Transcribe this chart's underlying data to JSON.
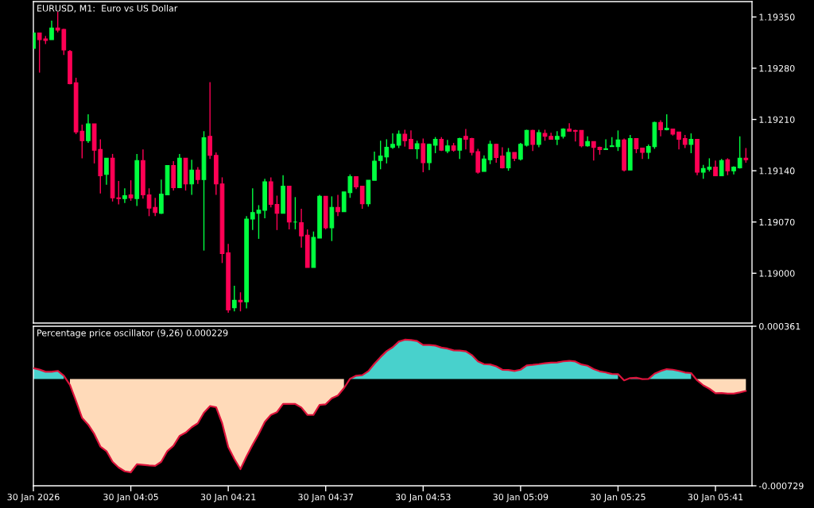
{
  "chart_data": [
    {
      "type": "candlestick",
      "title": "EURUSD, M1:  Euro vs US Dollar",
      "x": [
        "2026-01-30T03:49",
        "2026-01-30T03:50",
        "2026-01-30T03:51",
        "2026-01-30T03:52",
        "2026-01-30T03:53",
        "2026-01-30T03:54",
        "2026-01-30T03:55",
        "2026-01-30T03:56",
        "2026-01-30T03:57",
        "2026-01-30T03:58",
        "2026-01-30T03:59",
        "2026-01-30T04:00",
        "2026-01-30T04:01",
        "2026-01-30T04:02",
        "2026-01-30T04:03",
        "2026-01-30T04:04",
        "2026-01-30T04:05",
        "2026-01-30T04:06",
        "2026-01-30T04:07",
        "2026-01-30T04:08",
        "2026-01-30T04:09",
        "2026-01-30T04:10",
        "2026-01-30T04:11",
        "2026-01-30T04:12",
        "2026-01-30T04:13",
        "2026-01-30T04:14",
        "2026-01-30T04:15",
        "2026-01-30T04:16",
        "2026-01-30T04:17",
        "2026-01-30T04:18",
        "2026-01-30T04:19",
        "2026-01-30T04:20",
        "2026-01-30T04:21",
        "2026-01-30T04:22",
        "2026-01-30T04:23",
        "2026-01-30T04:24",
        "2026-01-30T04:25",
        "2026-01-30T04:26",
        "2026-01-30T04:27",
        "2026-01-30T04:28",
        "2026-01-30T04:29",
        "2026-01-30T04:30",
        "2026-01-30T04:31",
        "2026-01-30T04:32",
        "2026-01-30T04:33",
        "2026-01-30T04:34",
        "2026-01-30T04:35",
        "2026-01-30T04:36",
        "2026-01-30T04:37",
        "2026-01-30T04:38",
        "2026-01-30T04:39",
        "2026-01-30T04:40",
        "2026-01-30T04:41",
        "2026-01-30T04:42",
        "2026-01-30T04:43",
        "2026-01-30T04:44",
        "2026-01-30T04:45",
        "2026-01-30T04:46",
        "2026-01-30T04:47",
        "2026-01-30T04:48",
        "2026-01-30T04:49",
        "2026-01-30T04:50",
        "2026-01-30T04:51",
        "2026-01-30T04:52",
        "2026-01-30T04:53",
        "2026-01-30T04:54",
        "2026-01-30T04:55",
        "2026-01-30T04:56",
        "2026-01-30T04:57",
        "2026-01-30T04:58",
        "2026-01-30T04:59",
        "2026-01-30T05:00",
        "2026-01-30T05:01",
        "2026-01-30T05:02",
        "2026-01-30T05:03",
        "2026-01-30T05:04",
        "2026-01-30T05:05",
        "2026-01-30T05:06",
        "2026-01-30T05:07",
        "2026-01-30T05:08",
        "2026-01-30T05:09",
        "2026-01-30T05:10",
        "2026-01-30T05:11",
        "2026-01-30T05:12",
        "2026-01-30T05:13",
        "2026-01-30T05:14",
        "2026-01-30T05:15",
        "2026-01-30T05:16",
        "2026-01-30T05:17",
        "2026-01-30T05:18",
        "2026-01-30T05:19",
        "2026-01-30T05:20",
        "2026-01-30T05:21",
        "2026-01-30T05:22",
        "2026-01-30T05:23",
        "2026-01-30T05:24",
        "2026-01-30T05:25",
        "2026-01-30T05:26",
        "2026-01-30T05:27",
        "2026-01-30T05:28",
        "2026-01-30T05:29",
        "2026-01-30T05:30",
        "2026-01-30T05:31",
        "2026-01-30T05:32",
        "2026-01-30T05:33",
        "2026-01-30T05:34",
        "2026-01-30T05:35",
        "2026-01-30T05:36",
        "2026-01-30T05:37",
        "2026-01-30T05:38",
        "2026-01-30T05:39",
        "2026-01-30T05:40",
        "2026-01-30T05:41",
        "2026-01-30T05:42",
        "2026-01-30T05:43",
        "2026-01-30T05:44",
        "2026-01-30T05:45",
        "2026-01-30T05:46"
      ],
      "ohlc": [
        [
          1.19307,
          1.19328,
          1.19307,
          1.19328
        ],
        [
          1.19328,
          1.19328,
          1.19274,
          1.19319
        ],
        [
          1.1932,
          1.19324,
          1.19313,
          1.19318
        ],
        [
          1.19319,
          1.19345,
          1.19319,
          1.19335
        ],
        [
          1.19335,
          1.19357,
          1.19329,
          1.19332
        ],
        [
          1.19333,
          1.19334,
          1.19298,
          1.19305
        ],
        [
          1.19303,
          1.19305,
          1.19258,
          1.19259
        ],
        [
          1.1926,
          1.19267,
          1.1919,
          1.19193
        ],
        [
          1.19194,
          1.19203,
          1.19157,
          1.19181
        ],
        [
          1.19181,
          1.19217,
          1.19178,
          1.19204
        ],
        [
          1.19204,
          1.19204,
          1.1915,
          1.19168
        ],
        [
          1.19169,
          1.19183,
          1.19109,
          1.19133
        ],
        [
          1.19135,
          1.19157,
          1.19121,
          1.19157
        ],
        [
          1.19157,
          1.19163,
          1.19098,
          1.19103
        ],
        [
          1.19103,
          1.19126,
          1.19094,
          1.19102
        ],
        [
          1.19102,
          1.19116,
          1.19096,
          1.19106
        ],
        [
          1.19107,
          1.19127,
          1.19099,
          1.19103
        ],
        [
          1.19102,
          1.19163,
          1.19092,
          1.19154
        ],
        [
          1.19154,
          1.19169,
          1.19102,
          1.19107
        ],
        [
          1.19107,
          1.19116,
          1.19078,
          1.19089
        ],
        [
          1.1909,
          1.19103,
          1.19078,
          1.19083
        ],
        [
          1.19082,
          1.19128,
          1.19081,
          1.19108
        ],
        [
          1.19107,
          1.19147,
          1.19107,
          1.19147
        ],
        [
          1.19147,
          1.19153,
          1.19113,
          1.19117
        ],
        [
          1.19117,
          1.19163,
          1.19117,
          1.19157
        ],
        [
          1.19157,
          1.19157,
          1.19113,
          1.19122
        ],
        [
          1.19122,
          1.19155,
          1.19107,
          1.19141
        ],
        [
          1.19141,
          1.19145,
          1.19122,
          1.19128
        ],
        [
          1.19128,
          1.19194,
          1.19031,
          1.19185
        ],
        [
          1.19187,
          1.19261,
          1.19156,
          1.19161
        ],
        [
          1.19161,
          1.19165,
          1.19107,
          1.19122
        ],
        [
          1.19122,
          1.19131,
          1.19014,
          1.19027
        ],
        [
          1.19028,
          1.1904,
          1.18946,
          1.1895
        ],
        [
          1.18953,
          1.18983,
          1.18948,
          1.18963
        ],
        [
          1.18963,
          1.18974,
          1.18948,
          1.18961
        ],
        [
          1.18961,
          1.19078,
          1.18952,
          1.19074
        ],
        [
          1.19074,
          1.19116,
          1.19059,
          1.19083
        ],
        [
          1.19082,
          1.19093,
          1.19047,
          1.19086
        ],
        [
          1.19086,
          1.19129,
          1.19075,
          1.19125
        ],
        [
          1.19125,
          1.19131,
          1.1909,
          1.19094
        ],
        [
          1.19094,
          1.19106,
          1.19059,
          1.19082
        ],
        [
          1.19082,
          1.19134,
          1.19082,
          1.19119
        ],
        [
          1.19119,
          1.19119,
          1.1906,
          1.1907
        ],
        [
          1.1907,
          1.19104,
          1.1906,
          1.1907
        ],
        [
          1.19069,
          1.19088,
          1.19035,
          1.19051
        ],
        [
          1.19052,
          1.1906,
          1.19008,
          1.19008
        ],
        [
          1.19008,
          1.19057,
          1.19008,
          1.19049
        ],
        [
          1.19048,
          1.19107,
          1.19048,
          1.19105
        ],
        [
          1.19105,
          1.19105,
          1.1906,
          1.19062
        ],
        [
          1.19062,
          1.19105,
          1.19044,
          1.1909
        ],
        [
          1.1909,
          1.19107,
          1.19078,
          1.19084
        ],
        [
          1.19084,
          1.19111,
          1.19084,
          1.19111
        ],
        [
          1.1911,
          1.19135,
          1.19103,
          1.19132
        ],
        [
          1.19132,
          1.19132,
          1.19115,
          1.19118
        ],
        [
          1.19119,
          1.19119,
          1.19088,
          1.19095
        ],
        [
          1.19095,
          1.19127,
          1.19091,
          1.19127
        ],
        [
          1.19127,
          1.19166,
          1.19127,
          1.19153
        ],
        [
          1.19154,
          1.19181,
          1.19142,
          1.1916
        ],
        [
          1.19159,
          1.19183,
          1.1915,
          1.19172
        ],
        [
          1.19172,
          1.19191,
          1.1917,
          1.19176
        ],
        [
          1.19175,
          1.19195,
          1.19171,
          1.1919
        ],
        [
          1.1919,
          1.19196,
          1.19173,
          1.19181
        ],
        [
          1.19183,
          1.19195,
          1.1917,
          1.1917
        ],
        [
          1.1917,
          1.19181,
          1.19156,
          1.19177
        ],
        [
          1.19177,
          1.19184,
          1.19138,
          1.19151
        ],
        [
          1.19151,
          1.19177,
          1.19141,
          1.19176
        ],
        [
          1.19175,
          1.19186,
          1.19164,
          1.19183
        ],
        [
          1.19183,
          1.19186,
          1.19167,
          1.19168
        ],
        [
          1.19167,
          1.19182,
          1.19164,
          1.19174
        ],
        [
          1.19174,
          1.19178,
          1.19166,
          1.19168
        ],
        [
          1.19168,
          1.19185,
          1.19156,
          1.19184
        ],
        [
          1.19187,
          1.19197,
          1.19169,
          1.19183
        ],
        [
          1.19184,
          1.19185,
          1.19161,
          1.19165
        ],
        [
          1.19166,
          1.1917,
          1.19136,
          1.19138
        ],
        [
          1.19139,
          1.19161,
          1.19139,
          1.19156
        ],
        [
          1.19155,
          1.19181,
          1.19149,
          1.19176
        ],
        [
          1.19176,
          1.19177,
          1.19151,
          1.19158
        ],
        [
          1.1916,
          1.19172,
          1.19143,
          1.19144
        ],
        [
          1.19144,
          1.19171,
          1.1914,
          1.19165
        ],
        [
          1.19165,
          1.19165,
          1.19153,
          1.19157
        ],
        [
          1.19156,
          1.19178,
          1.19154,
          1.19176
        ],
        [
          1.19175,
          1.19196,
          1.19173,
          1.19195
        ],
        [
          1.19195,
          1.19196,
          1.19167,
          1.19176
        ],
        [
          1.19176,
          1.19196,
          1.19172,
          1.19192
        ],
        [
          1.19191,
          1.19196,
          1.19181,
          1.19187
        ],
        [
          1.19187,
          1.19192,
          1.19183,
          1.19183
        ],
        [
          1.19183,
          1.19194,
          1.19175,
          1.19187
        ],
        [
          1.19187,
          1.19198,
          1.19184,
          1.19197
        ],
        [
          1.19197,
          1.19205,
          1.19194,
          1.19194
        ],
        [
          1.19195,
          1.19196,
          1.1918,
          1.19194
        ],
        [
          1.19195,
          1.19195,
          1.19172,
          1.19174
        ],
        [
          1.19174,
          1.19187,
          1.19173,
          1.1918
        ],
        [
          1.1918,
          1.1918,
          1.19154,
          1.19172
        ],
        [
          1.19172,
          1.19173,
          1.19162,
          1.19169
        ],
        [
          1.19169,
          1.19183,
          1.19169,
          1.1917
        ],
        [
          1.19173,
          1.19186,
          1.19173,
          1.19174
        ],
        [
          1.19173,
          1.19195,
          1.19167,
          1.19182
        ],
        [
          1.19182,
          1.19184,
          1.19139,
          1.19141
        ],
        [
          1.19141,
          1.19189,
          1.19141,
          1.19184
        ],
        [
          1.19184,
          1.19184,
          1.19164,
          1.1917
        ],
        [
          1.19171,
          1.19171,
          1.19156,
          1.19165
        ],
        [
          1.19165,
          1.19176,
          1.19156,
          1.19173
        ],
        [
          1.19173,
          1.19207,
          1.1917,
          1.19206
        ],
        [
          1.19206,
          1.19209,
          1.19187,
          1.19196
        ],
        [
          1.19196,
          1.19217,
          1.19195,
          1.19198
        ],
        [
          1.19197,
          1.19197,
          1.19188,
          1.1919
        ],
        [
          1.19193,
          1.19193,
          1.19169,
          1.19183
        ],
        [
          1.19184,
          1.19189,
          1.19171,
          1.19176
        ],
        [
          1.19176,
          1.19191,
          1.19164,
          1.19183
        ],
        [
          1.19183,
          1.19183,
          1.19134,
          1.19138
        ],
        [
          1.19138,
          1.19148,
          1.19129,
          1.19143
        ],
        [
          1.19142,
          1.19157,
          1.19139,
          1.19145
        ],
        [
          1.19145,
          1.19154,
          1.19133,
          1.19133
        ],
        [
          1.19133,
          1.19156,
          1.19133,
          1.19154
        ],
        [
          1.19155,
          1.19157,
          1.19134,
          1.1914
        ],
        [
          1.1914,
          1.19146,
          1.19135,
          1.19145
        ],
        [
          1.19144,
          1.19187,
          1.19143,
          1.19157
        ],
        [
          1.19157,
          1.19171,
          1.19151,
          1.19155
        ]
      ],
      "colors": [
        "#00ff40",
        "#ff0055",
        "#ff0055",
        "#00ff40",
        "#ff0055",
        "#ff0055",
        "#ff0055",
        "#ff0055",
        "#ff0055",
        "#00ff40",
        "#ff0055",
        "#ff0055",
        "#00ff40",
        "#ff0055",
        "#ff0055",
        "#00ff40",
        "#ff0055",
        "#00ff40",
        "#ff0055",
        "#ff0055",
        "#ff0055",
        "#00ff40",
        "#00ff40",
        "#ff0055",
        "#00ff40",
        "#ff0055",
        "#00ff40",
        "#ff0055",
        "#00ff40",
        "#ff0055",
        "#ff0055",
        "#ff0055",
        "#ff0055",
        "#00ff40",
        "#ff0055",
        "#00ff40",
        "#00ff40",
        "#00ff40",
        "#00ff40",
        "#ff0055",
        "#ff0055",
        "#00ff40",
        "#ff0055",
        "#00ff40",
        "#ff0055",
        "#ff0055",
        "#00ff40",
        "#00ff40",
        "#ff0055",
        "#00ff40",
        "#ff0055",
        "#00ff40",
        "#00ff40",
        "#ff0055",
        "#ff0055",
        "#00ff40",
        "#00ff40",
        "#00ff40",
        "#00ff40",
        "#00ff40",
        "#00ff40",
        "#ff0055",
        "#ff0055",
        "#00ff40",
        "#ff0055",
        "#00ff40",
        "#00ff40",
        "#ff0055",
        "#00ff40",
        "#ff0055",
        "#00ff40",
        "#ff0055",
        "#ff0055",
        "#ff0055",
        "#00ff40",
        "#00ff40",
        "#ff0055",
        "#ff0055",
        "#00ff40",
        "#ff0055",
        "#00ff40",
        "#00ff40",
        "#ff0055",
        "#00ff40",
        "#ff0055",
        "#ff0055",
        "#00ff40",
        "#00ff40",
        "#ff0055",
        "#ff0055",
        "#ff0055",
        "#00ff40",
        "#ff0055",
        "#ff0055",
        "#00ff40",
        "#00ff40",
        "#00ff40",
        "#ff0055",
        "#00ff40",
        "#ff0055",
        "#ff0055",
        "#00ff40",
        "#00ff40",
        "#ff0055",
        "#00ff40",
        "#ff0055",
        "#ff0055",
        "#ff0055",
        "#00ff40",
        "#ff0055",
        "#00ff40",
        "#00ff40",
        "#ff0055",
        "#00ff40",
        "#ff0055",
        "#00ff40",
        "#00ff40",
        "#ff0055"
      ],
      "xlim": [
        "2026-01-30T03:49",
        "2026-01-30T05:47"
      ],
      "ylim": [
        1.18932,
        1.19371
      ],
      "yticks": [
        {
          "value": 1.1935,
          "label": "1.19350"
        },
        {
          "value": 1.1928,
          "label": "1.19280"
        },
        {
          "value": 1.1921,
          "label": "1.19210"
        },
        {
          "value": 1.1914,
          "label": "1.19140"
        },
        {
          "value": 1.1907,
          "label": "1.19070"
        },
        {
          "value": 1.19,
          "label": "1.19000"
        }
      ],
      "tick_labels": "y"
    },
    {
      "type": "area",
      "title": "Percentage price oscillator (9,26) 0.000229",
      "x": [
        "2026-01-30T03:49",
        "2026-01-30T03:50",
        "2026-01-30T03:51",
        "2026-01-30T03:52",
        "2026-01-30T03:53",
        "2026-01-30T03:54",
        "2026-01-30T03:55",
        "2026-01-30T03:56",
        "2026-01-30T03:57",
        "2026-01-30T03:58",
        "2026-01-30T03:59",
        "2026-01-30T04:00",
        "2026-01-30T04:01",
        "2026-01-30T04:02",
        "2026-01-30T04:03",
        "2026-01-30T04:04",
        "2026-01-30T04:05",
        "2026-01-30T04:06",
        "2026-01-30T04:07",
        "2026-01-30T04:08",
        "2026-01-30T04:09",
        "2026-01-30T04:10",
        "2026-01-30T04:11",
        "2026-01-30T04:12",
        "2026-01-30T04:13",
        "2026-01-30T04:14",
        "2026-01-30T04:15",
        "2026-01-30T04:16",
        "2026-01-30T04:17",
        "2026-01-30T04:18",
        "2026-01-30T04:19",
        "2026-01-30T04:20",
        "2026-01-30T04:21",
        "2026-01-30T04:22",
        "2026-01-30T04:23",
        "2026-01-30T04:24",
        "2026-01-30T04:25",
        "2026-01-30T04:26",
        "2026-01-30T04:27",
        "2026-01-30T04:28",
        "2026-01-30T04:29",
        "2026-01-30T04:30",
        "2026-01-30T04:31",
        "2026-01-30T04:32",
        "2026-01-30T04:33",
        "2026-01-30T04:34",
        "2026-01-30T04:35",
        "2026-01-30T04:36",
        "2026-01-30T04:37",
        "2026-01-30T04:38",
        "2026-01-30T04:39",
        "2026-01-30T04:40",
        "2026-01-30T04:41",
        "2026-01-30T04:42",
        "2026-01-30T04:43",
        "2026-01-30T04:44",
        "2026-01-30T04:45",
        "2026-01-30T04:46",
        "2026-01-30T04:47",
        "2026-01-30T04:48",
        "2026-01-30T04:49",
        "2026-01-30T04:50",
        "2026-01-30T04:51",
        "2026-01-30T04:52",
        "2026-01-30T04:53",
        "2026-01-30T04:54",
        "2026-01-30T04:55",
        "2026-01-30T04:56",
        "2026-01-30T04:57",
        "2026-01-30T04:58",
        "2026-01-30T04:59",
        "2026-01-30T05:00",
        "2026-01-30T05:01",
        "2026-01-30T05:02",
        "2026-01-30T05:03",
        "2026-01-30T05:04",
        "2026-01-30T05:05",
        "2026-01-30T05:06",
        "2026-01-30T05:07",
        "2026-01-30T05:08",
        "2026-01-30T05:09",
        "2026-01-30T05:10",
        "2026-01-30T05:11",
        "2026-01-30T05:12",
        "2026-01-30T05:13",
        "2026-01-30T05:14",
        "2026-01-30T05:15",
        "2026-01-30T05:16",
        "2026-01-30T05:17",
        "2026-01-30T05:18",
        "2026-01-30T05:19",
        "2026-01-30T05:20",
        "2026-01-30T05:21",
        "2026-01-30T05:22",
        "2026-01-30T05:23",
        "2026-01-30T05:24",
        "2026-01-30T05:25",
        "2026-01-30T05:26",
        "2026-01-30T05:27",
        "2026-01-30T05:28",
        "2026-01-30T05:29",
        "2026-01-30T05:30",
        "2026-01-30T05:31",
        "2026-01-30T05:32",
        "2026-01-30T05:33",
        "2026-01-30T05:34",
        "2026-01-30T05:35",
        "2026-01-30T05:36",
        "2026-01-30T05:37",
        "2026-01-30T05:38",
        "2026-01-30T05:39",
        "2026-01-30T05:40",
        "2026-01-30T05:41",
        "2026-01-30T05:42",
        "2026-01-30T05:43",
        "2026-01-30T05:44",
        "2026-01-30T05:45",
        "2026-01-30T05:46"
      ],
      "series": [
        {
          "type": "area",
          "color": "#48d1cc",
          "values": [
            7.4e-05,
            6.5e-05,
            5e-05,
            5e-05,
            5.6e-05,
            2.3e-05,
            null,
            null,
            null,
            null,
            null,
            null,
            null,
            null,
            null,
            null,
            null,
            null,
            null,
            null,
            null,
            null,
            null,
            null,
            null,
            null,
            null,
            null,
            null,
            null,
            null,
            null,
            null,
            null,
            null,
            null,
            null,
            null,
            null,
            null,
            null,
            null,
            null,
            null,
            null,
            null,
            null,
            null,
            null,
            null,
            null,
            null,
            2e-06,
            2.3e-05,
            2.7e-05,
            5.4e-05,
            0.000105,
            0.00015,
            0.000191,
            0.000217,
            0.000256,
            0.000269,
            0.000267,
            0.00026,
            0.000233,
            0.000233,
            0.000229,
            0.000215,
            0.000208,
            0.000196,
            0.000195,
            0.00019,
            0.000164,
            0.000121,
            0.000102,
            0.0001,
            8.7e-05,
            6.4e-05,
            6.2e-05,
            5.5e-05,
            6.4e-05,
            9.3e-05,
            9.7e-05,
            0.000102,
            0.000108,
            0.000112,
            0.000114,
            0.000121,
            0.000125,
            0.00012,
            0.0001,
            9.1e-05,
            6.8e-05,
            5.3e-05,
            4.5e-05,
            3.5e-05,
            3.4e-05,
            null,
            7e-06,
            9e-06,
            0,
            1e-06,
            3.7e-05,
            5.5e-05,
            6.8e-05,
            6.4e-05,
            5.6e-05,
            4.5e-05,
            4.1e-05,
            null,
            null,
            null,
            null,
            null,
            null,
            null,
            null,
            null
          ]
        },
        {
          "type": "area",
          "color": "#ffdab9",
          "values": [
            null,
            null,
            null,
            null,
            null,
            null,
            -4e-05,
            -0.000149,
            -0.000266,
            -0.000311,
            -0.000375,
            -0.000461,
            -0.000492,
            -0.000565,
            -0.000604,
            -0.00063,
            -0.000637,
            -0.000582,
            -0.000586,
            -0.00059,
            -0.000593,
            -0.000565,
            -0.000492,
            -0.000456,
            -0.000389,
            -0.000366,
            -0.000329,
            -0.000302,
            -0.00023,
            -0.000185,
            -0.000192,
            -0.000302,
            -0.000465,
            -0.000546,
            -0.000615,
            -0.000528,
            -0.000449,
            -0.000375,
            -0.000293,
            -0.000245,
            -0.000226,
            -0.00017,
            -0.00017,
            -0.00017,
            -0.000194,
            -0.000245,
            -0.000244,
            -0.000176,
            -0.000172,
            -0.000131,
            -0.000112,
            -6.2e-05,
            null,
            null,
            null,
            null,
            null,
            null,
            null,
            null,
            null,
            null,
            null,
            null,
            null,
            null,
            null,
            null,
            null,
            null,
            null,
            null,
            null,
            null,
            null,
            null,
            null,
            null,
            null,
            null,
            null,
            null,
            null,
            null,
            null,
            null,
            null,
            null,
            null,
            null,
            null,
            null,
            null,
            null,
            null,
            null,
            null,
            null,
            null,
            null,
            null,
            null,
            null,
            null,
            null,
            null,
            null,
            null,
            null,
            -9e-06,
            -4.3e-05,
            -6.6e-05,
            -9.7e-05,
            -9.5e-05,
            -9.9e-05,
            -9.9e-05,
            -9.1e-05,
            -8.1e-05
          ]
        },
        {
          "type": "line",
          "color": "#dc143c",
          "values": [
            7.4e-05,
            6.5e-05,
            5e-05,
            5e-05,
            5.6e-05,
            2.3e-05,
            -4e-05,
            -0.000149,
            -0.000266,
            -0.000311,
            -0.000375,
            -0.000461,
            -0.000492,
            -0.000565,
            -0.000604,
            -0.00063,
            -0.000637,
            -0.000582,
            -0.000586,
            -0.00059,
            -0.000593,
            -0.000565,
            -0.000492,
            -0.000456,
            -0.000389,
            -0.000366,
            -0.000329,
            -0.000302,
            -0.00023,
            -0.000185,
            -0.000192,
            -0.000302,
            -0.000465,
            -0.000546,
            -0.000615,
            -0.000528,
            -0.000449,
            -0.000375,
            -0.000293,
            -0.000245,
            -0.000226,
            -0.00017,
            -0.00017,
            -0.00017,
            -0.000194,
            -0.000245,
            -0.000244,
            -0.000176,
            -0.000172,
            -0.000131,
            -0.000112,
            -6.2e-05,
            2e-06,
            2.3e-05,
            2.7e-05,
            5.4e-05,
            0.000105,
            0.00015,
            0.000191,
            0.000217,
            0.000256,
            0.000269,
            0.000267,
            0.00026,
            0.000233,
            0.000233,
            0.000229,
            0.000215,
            0.000208,
            0.000196,
            0.000195,
            0.00019,
            0.000164,
            0.000121,
            0.000102,
            0.0001,
            8.7e-05,
            6.4e-05,
            6.2e-05,
            5.5e-05,
            6.4e-05,
            9.3e-05,
            9.7e-05,
            0.000102,
            0.000108,
            0.000112,
            0.000114,
            0.000121,
            0.000125,
            0.00012,
            0.0001,
            9.1e-05,
            6.8e-05,
            5.3e-05,
            4.5e-05,
            3.5e-05,
            3.4e-05,
            -9e-06,
            7e-06,
            9e-06,
            0,
            1e-06,
            3.7e-05,
            5.5e-05,
            6.8e-05,
            6.4e-05,
            5.6e-05,
            4.5e-05,
            4.1e-05,
            -9e-06,
            -4.3e-05,
            -6.6e-05,
            -9.7e-05,
            -9.5e-05,
            -9.9e-05,
            -9.9e-05,
            -9.1e-05,
            -8.1e-05
          ]
        }
      ],
      "xlim": [
        "2026-01-30T03:49",
        "2026-01-30T05:47"
      ],
      "xticks": [
        {
          "value": "2026-01-30T03:49",
          "label": "30 Jan 2026"
        },
        {
          "value": "2026-01-30T04:05",
          "label": "30 Jan 04:05"
        },
        {
          "value": "2026-01-30T04:21",
          "label": "30 Jan 04:21"
        },
        {
          "value": "2026-01-30T04:37",
          "label": "30 Jan 04:37"
        },
        {
          "value": "2026-01-30T04:53",
          "label": "30 Jan 04:53"
        },
        {
          "value": "2026-01-30T05:09",
          "label": "30 Jan 05:09"
        },
        {
          "value": "2026-01-30T05:25",
          "label": "30 Jan 05:25"
        },
        {
          "value": "2026-01-30T05:41",
          "label": "30 Jan 05:41"
        }
      ],
      "ylim": [
        -0.000729,
        0.000361
      ],
      "yticks": [
        0.000361,
        -0.000729
      ]
    }
  ]
}
